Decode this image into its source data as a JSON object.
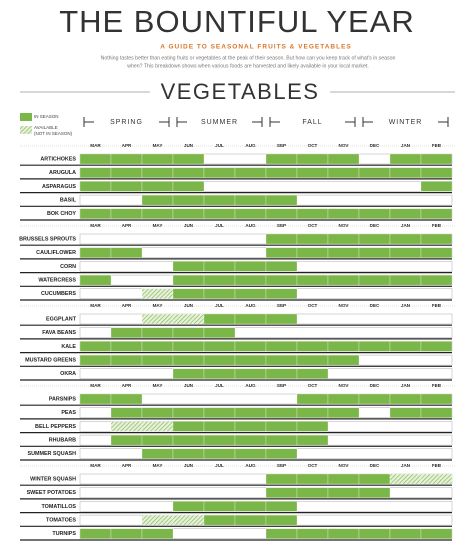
{
  "header": {
    "title": "THE BOUNTIFUL YEAR",
    "subtitle": "A GUIDE TO SEASONAL FRUITS & VEGETABLES",
    "intro": [
      "Nothing tastes better than eating fruits or vegetables at the peak of their season. But how can you keep track of what's in season",
      "when? This breakdown shows when various foods are harvested and likely available in your local market."
    ]
  },
  "section": "VEGETABLES",
  "legend": {
    "in_season": "IN SEASON",
    "available": [
      "AVAILABLE",
      "(NOT IN SEASON)"
    ]
  },
  "seasons": [
    "SPRING",
    "SUMMER",
    "FALL",
    "WINTER"
  ],
  "months": [
    "MAR",
    "APR",
    "MAY",
    "JUN",
    "JUL",
    "AUG",
    "SEP",
    "OCT",
    "NOV",
    "DEC",
    "JAN",
    "FEB"
  ],
  "groups": [
    [
      {
        "name": "ARTICHOKES",
        "status": [
          "in",
          "in",
          "in",
          "in",
          "none",
          "none",
          "in",
          "in",
          "in",
          "none",
          "in",
          "in"
        ]
      },
      {
        "name": "ARUGULA",
        "status": [
          "in",
          "in",
          "in",
          "in",
          "in",
          "in",
          "in",
          "in",
          "in",
          "in",
          "in",
          "in"
        ]
      },
      {
        "name": "ASPARAGUS",
        "status": [
          "in",
          "in",
          "in",
          "in",
          "none",
          "none",
          "none",
          "none",
          "none",
          "none",
          "none",
          "in"
        ]
      },
      {
        "name": "BASIL",
        "status": [
          "none",
          "none",
          "in",
          "in",
          "in",
          "in",
          "in",
          "none",
          "none",
          "none",
          "none",
          "none"
        ]
      },
      {
        "name": "BOK CHOY",
        "status": [
          "in",
          "in",
          "in",
          "in",
          "in",
          "in",
          "in",
          "in",
          "in",
          "in",
          "in",
          "in"
        ]
      }
    ],
    [
      {
        "name": "BRUSSELS SPROUTS",
        "status": [
          "none",
          "none",
          "none",
          "none",
          "none",
          "none",
          "in",
          "in",
          "in",
          "in",
          "in",
          "in"
        ]
      },
      {
        "name": "CAULIFLOWER",
        "status": [
          "in",
          "in",
          "none",
          "none",
          "none",
          "none",
          "in",
          "in",
          "in",
          "in",
          "in",
          "in"
        ]
      },
      {
        "name": "CORN",
        "status": [
          "none",
          "none",
          "none",
          "in",
          "in",
          "in",
          "in",
          "none",
          "none",
          "none",
          "none",
          "none"
        ]
      },
      {
        "name": "WATERCRESS",
        "status": [
          "in",
          "none",
          "none",
          "in",
          "in",
          "in",
          "in",
          "in",
          "in",
          "in",
          "in",
          "in"
        ]
      },
      {
        "name": "CUCUMBERS",
        "status": [
          "none",
          "none",
          "avail",
          "in",
          "in",
          "in",
          "in",
          "none",
          "none",
          "none",
          "none",
          "none"
        ]
      }
    ],
    [
      {
        "name": "EGGPLANT",
        "status": [
          "none",
          "none",
          "avail",
          "avail",
          "in",
          "in",
          "in",
          "none",
          "none",
          "none",
          "none",
          "none"
        ]
      },
      {
        "name": "FAVA BEANS",
        "status": [
          "none",
          "in",
          "in",
          "in",
          "in",
          "none",
          "none",
          "none",
          "none",
          "none",
          "none",
          "none"
        ]
      },
      {
        "name": "KALE",
        "status": [
          "in",
          "in",
          "in",
          "in",
          "in",
          "in",
          "in",
          "in",
          "in",
          "in",
          "in",
          "in"
        ]
      },
      {
        "name": "MUSTARD GREENS",
        "status": [
          "in",
          "in",
          "in",
          "in",
          "in",
          "in",
          "in",
          "in",
          "in",
          "none",
          "none",
          "none"
        ]
      },
      {
        "name": "OKRA",
        "status": [
          "none",
          "none",
          "none",
          "in",
          "in",
          "in",
          "in",
          "in",
          "none",
          "none",
          "none",
          "none"
        ]
      }
    ],
    [
      {
        "name": "PARSNIPS",
        "status": [
          "in",
          "in",
          "none",
          "none",
          "none",
          "none",
          "none",
          "in",
          "in",
          "in",
          "in",
          "in"
        ]
      },
      {
        "name": "PEAS",
        "status": [
          "none",
          "in",
          "in",
          "in",
          "in",
          "in",
          "in",
          "in",
          "in",
          "none",
          "in",
          "in"
        ]
      },
      {
        "name": "BELL PEPPERS",
        "status": [
          "none",
          "avail",
          "avail",
          "in",
          "in",
          "in",
          "in",
          "in",
          "none",
          "none",
          "none",
          "none"
        ]
      },
      {
        "name": "RHUBARB",
        "status": [
          "none",
          "in",
          "in",
          "in",
          "in",
          "in",
          "in",
          "in",
          "none",
          "none",
          "none",
          "none"
        ]
      },
      {
        "name": "SUMMER SQUASH",
        "status": [
          "none",
          "none",
          "in",
          "in",
          "in",
          "in",
          "in",
          "none",
          "none",
          "none",
          "none",
          "none"
        ]
      }
    ],
    [
      {
        "name": "WINTER SQUASH",
        "status": [
          "none",
          "none",
          "none",
          "none",
          "none",
          "none",
          "in",
          "in",
          "in",
          "in",
          "avail",
          "avail"
        ]
      },
      {
        "name": "SWEET POTATOES",
        "status": [
          "none",
          "none",
          "none",
          "none",
          "none",
          "none",
          "in",
          "in",
          "in",
          "in",
          "none",
          "none"
        ]
      },
      {
        "name": "TOMATILLOS",
        "status": [
          "none",
          "none",
          "none",
          "in",
          "in",
          "in",
          "in",
          "none",
          "none",
          "none",
          "none",
          "none"
        ]
      },
      {
        "name": "TOMATOES",
        "status": [
          "none",
          "none",
          "avail",
          "avail",
          "in",
          "in",
          "in",
          "none",
          "none",
          "none",
          "none",
          "none"
        ]
      },
      {
        "name": "TURNIPS",
        "status": [
          "in",
          "in",
          "in",
          "none",
          "none",
          "none",
          "in",
          "in",
          "in",
          "in",
          "in",
          "in"
        ]
      }
    ]
  ]
}
